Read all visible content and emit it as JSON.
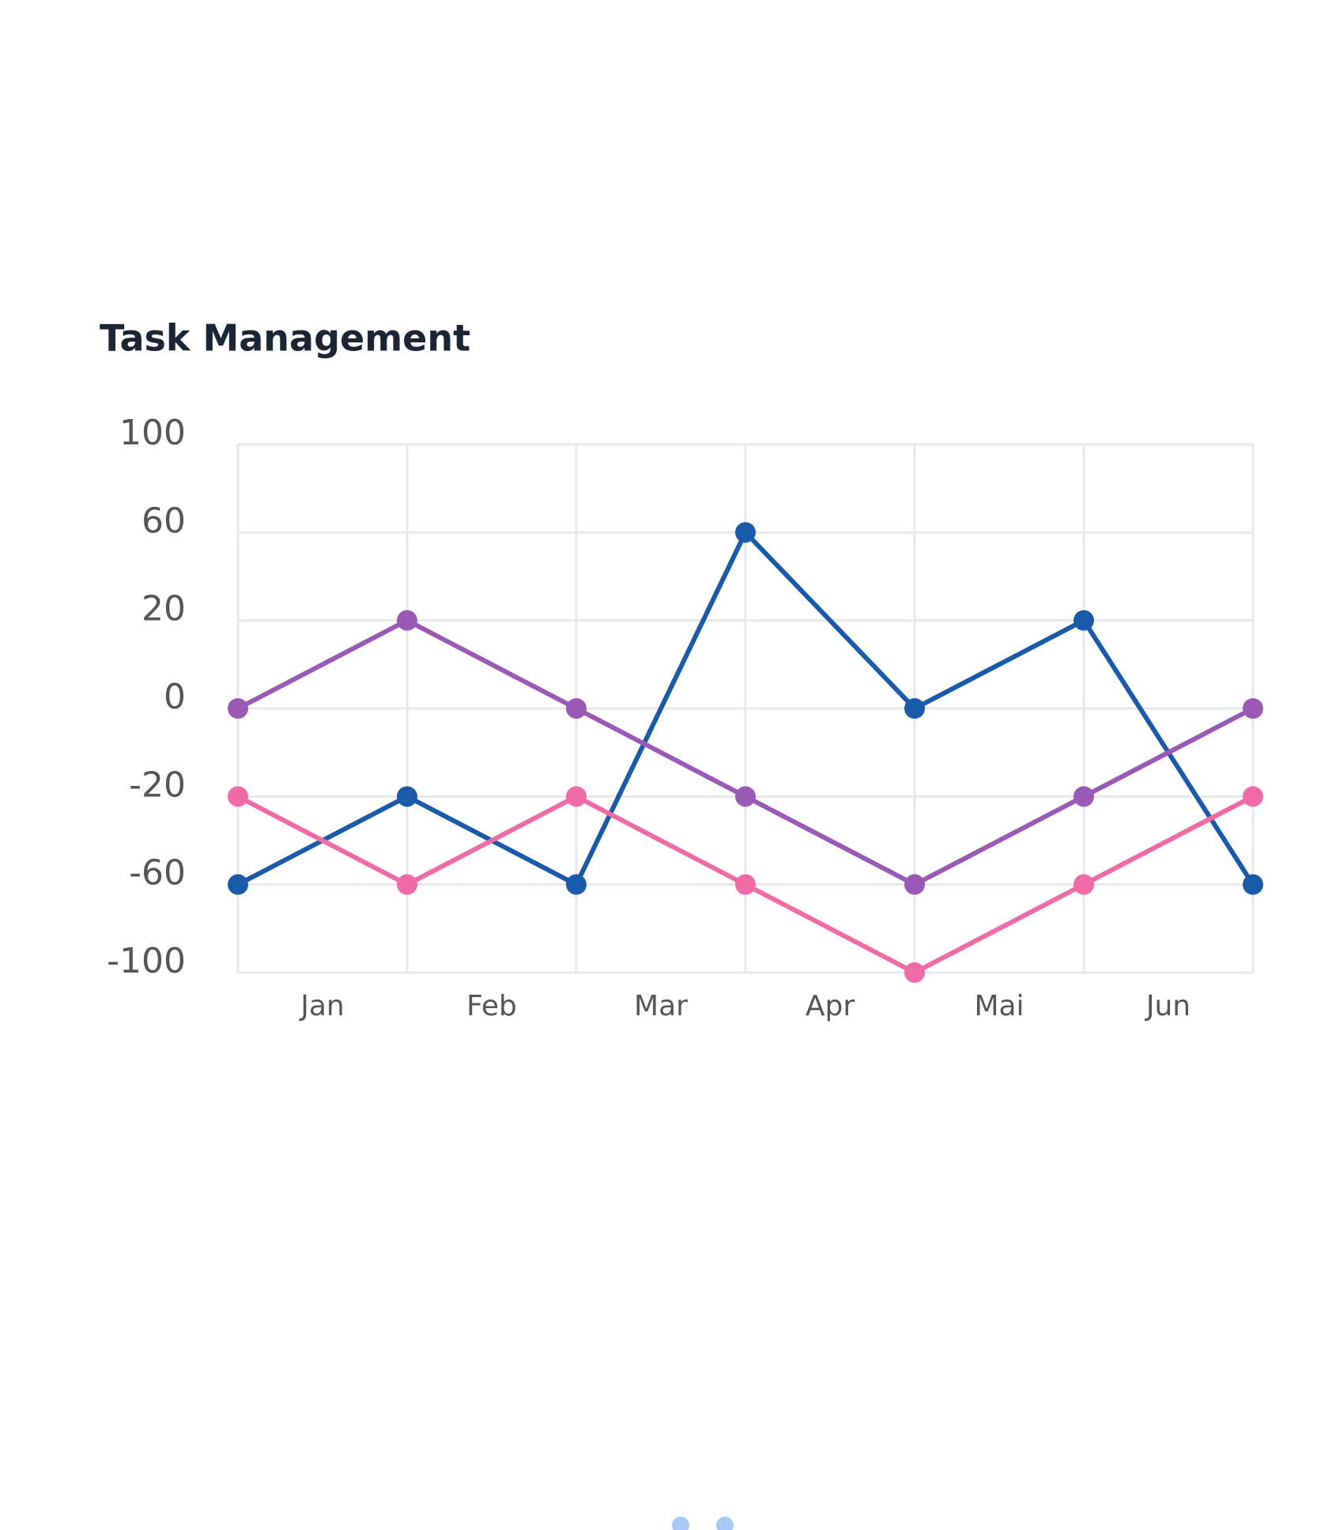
{
  "chart_data": {
    "type": "line",
    "title": "Task Management",
    "categories": [
      "Jan",
      "Feb",
      "Mar",
      "Apr",
      "Mai",
      "Jun",
      null
    ],
    "series": [
      {
        "color": "#1a5aaa",
        "values": [
          -60,
          -20,
          -60,
          60,
          0,
          20,
          -60
        ]
      },
      {
        "color": "#9b59b6",
        "values": [
          0,
          20,
          0,
          -20,
          -60,
          -20,
          0
        ]
      },
      {
        "color": "#f06aa6",
        "values": [
          -20,
          -60,
          -20,
          -60,
          -100,
          -60,
          -20
        ]
      }
    ],
    "ylim": [
      -100,
      100
    ],
    "yticks": [
      100,
      60,
      20,
      0,
      -20,
      -60,
      -100
    ],
    "grid": true
  }
}
